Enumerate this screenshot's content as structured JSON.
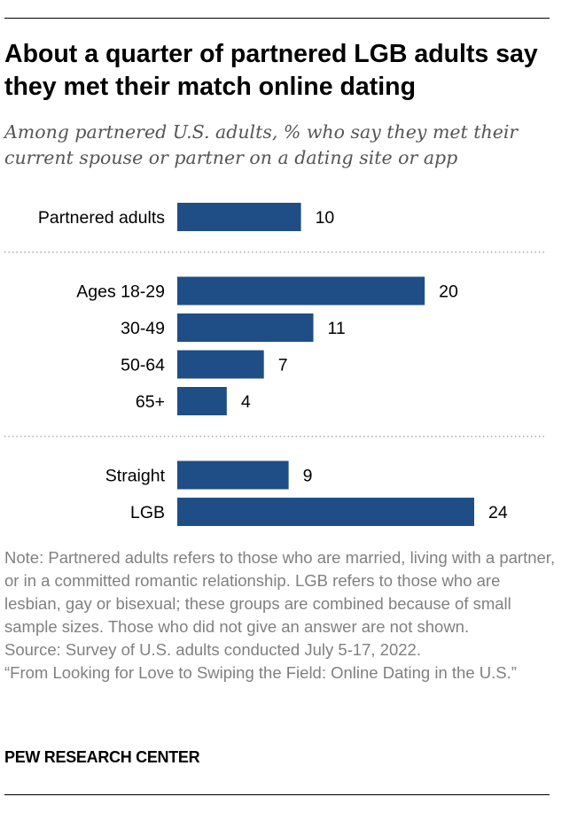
{
  "title": "About a quarter of partnered LGB adults say they met their match online dating",
  "subtitle": "Among partnered U.S. adults, % who say they met their current spouse or partner on a dating site or app",
  "chart_data": {
    "type": "bar",
    "orientation": "horizontal",
    "title": "About a quarter of partnered LGB adults say they met their match online dating",
    "subtitle": "Among partnered U.S. adults, % who say they met their current spouse or partner on a dating site or app",
    "xlabel": "",
    "ylabel": "",
    "xlim": [
      0,
      24
    ],
    "bar_color": "#1f4e86",
    "groups": [
      {
        "categories": [
          "Partnered adults"
        ],
        "values": [
          10
        ]
      },
      {
        "categories": [
          "Ages 18-29",
          "30-49",
          "50-64",
          "65+"
        ],
        "values": [
          20,
          11,
          7,
          4
        ]
      },
      {
        "categories": [
          "Straight",
          "LGB"
        ],
        "values": [
          9,
          24
        ]
      }
    ]
  },
  "note": "Note: Partnered adults refers to those who are married, living with a partner, or in a committed romantic relationship. LGB refers to those who are lesbian, gay or bisexual; these groups are combined because of small sample sizes. Those who did not give an answer are not shown.",
  "source": "Source: Survey of U.S. adults conducted July 5-17, 2022.",
  "report": "“From Looking for Love to Swiping the Field: Online Dating in the U.S.”",
  "brand": "PEW RESEARCH CENTER"
}
